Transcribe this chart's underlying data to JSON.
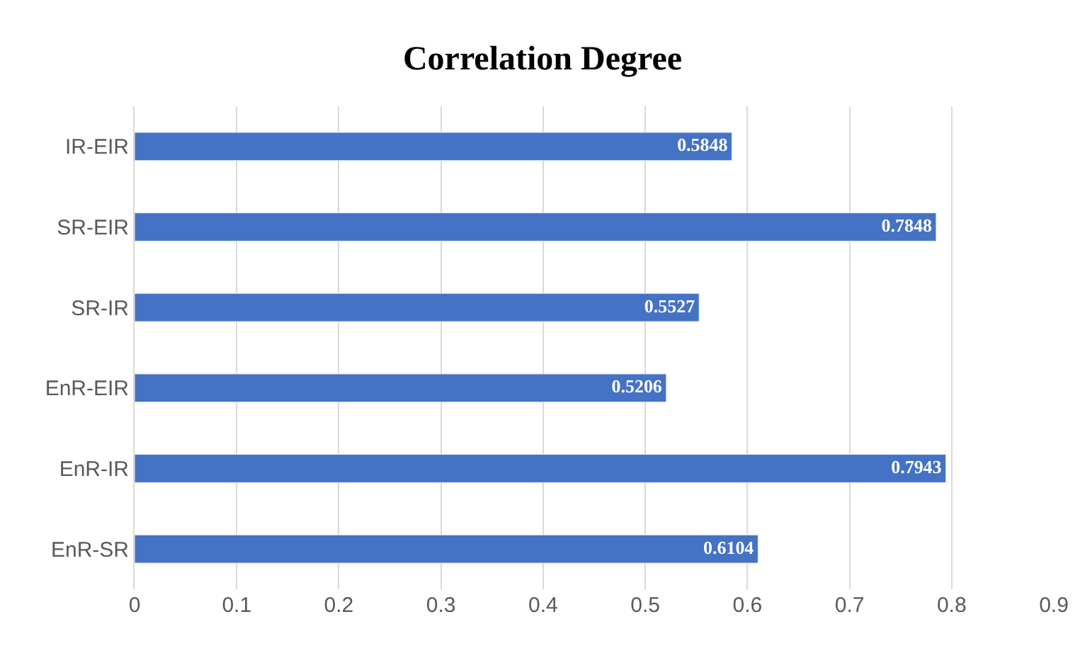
{
  "chart_data": {
    "type": "bar",
    "title": "Correlation Degree",
    "orientation": "horizontal",
    "categories": [
      "IR-EIR",
      "SR-EIR",
      "SR-IR",
      "EnR-EIR",
      "EnR-IR",
      "EnR-SR"
    ],
    "values": [
      0.5848,
      0.7848,
      0.5527,
      0.5206,
      0.7943,
      0.6104
    ],
    "color": "#4472c4",
    "xlim": [
      0,
      0.9
    ],
    "xticks": [
      0,
      0.1,
      0.2,
      0.3,
      0.4,
      0.5,
      0.6,
      0.7,
      0.8,
      0.9
    ],
    "grid": "x",
    "data_labels": true
  }
}
